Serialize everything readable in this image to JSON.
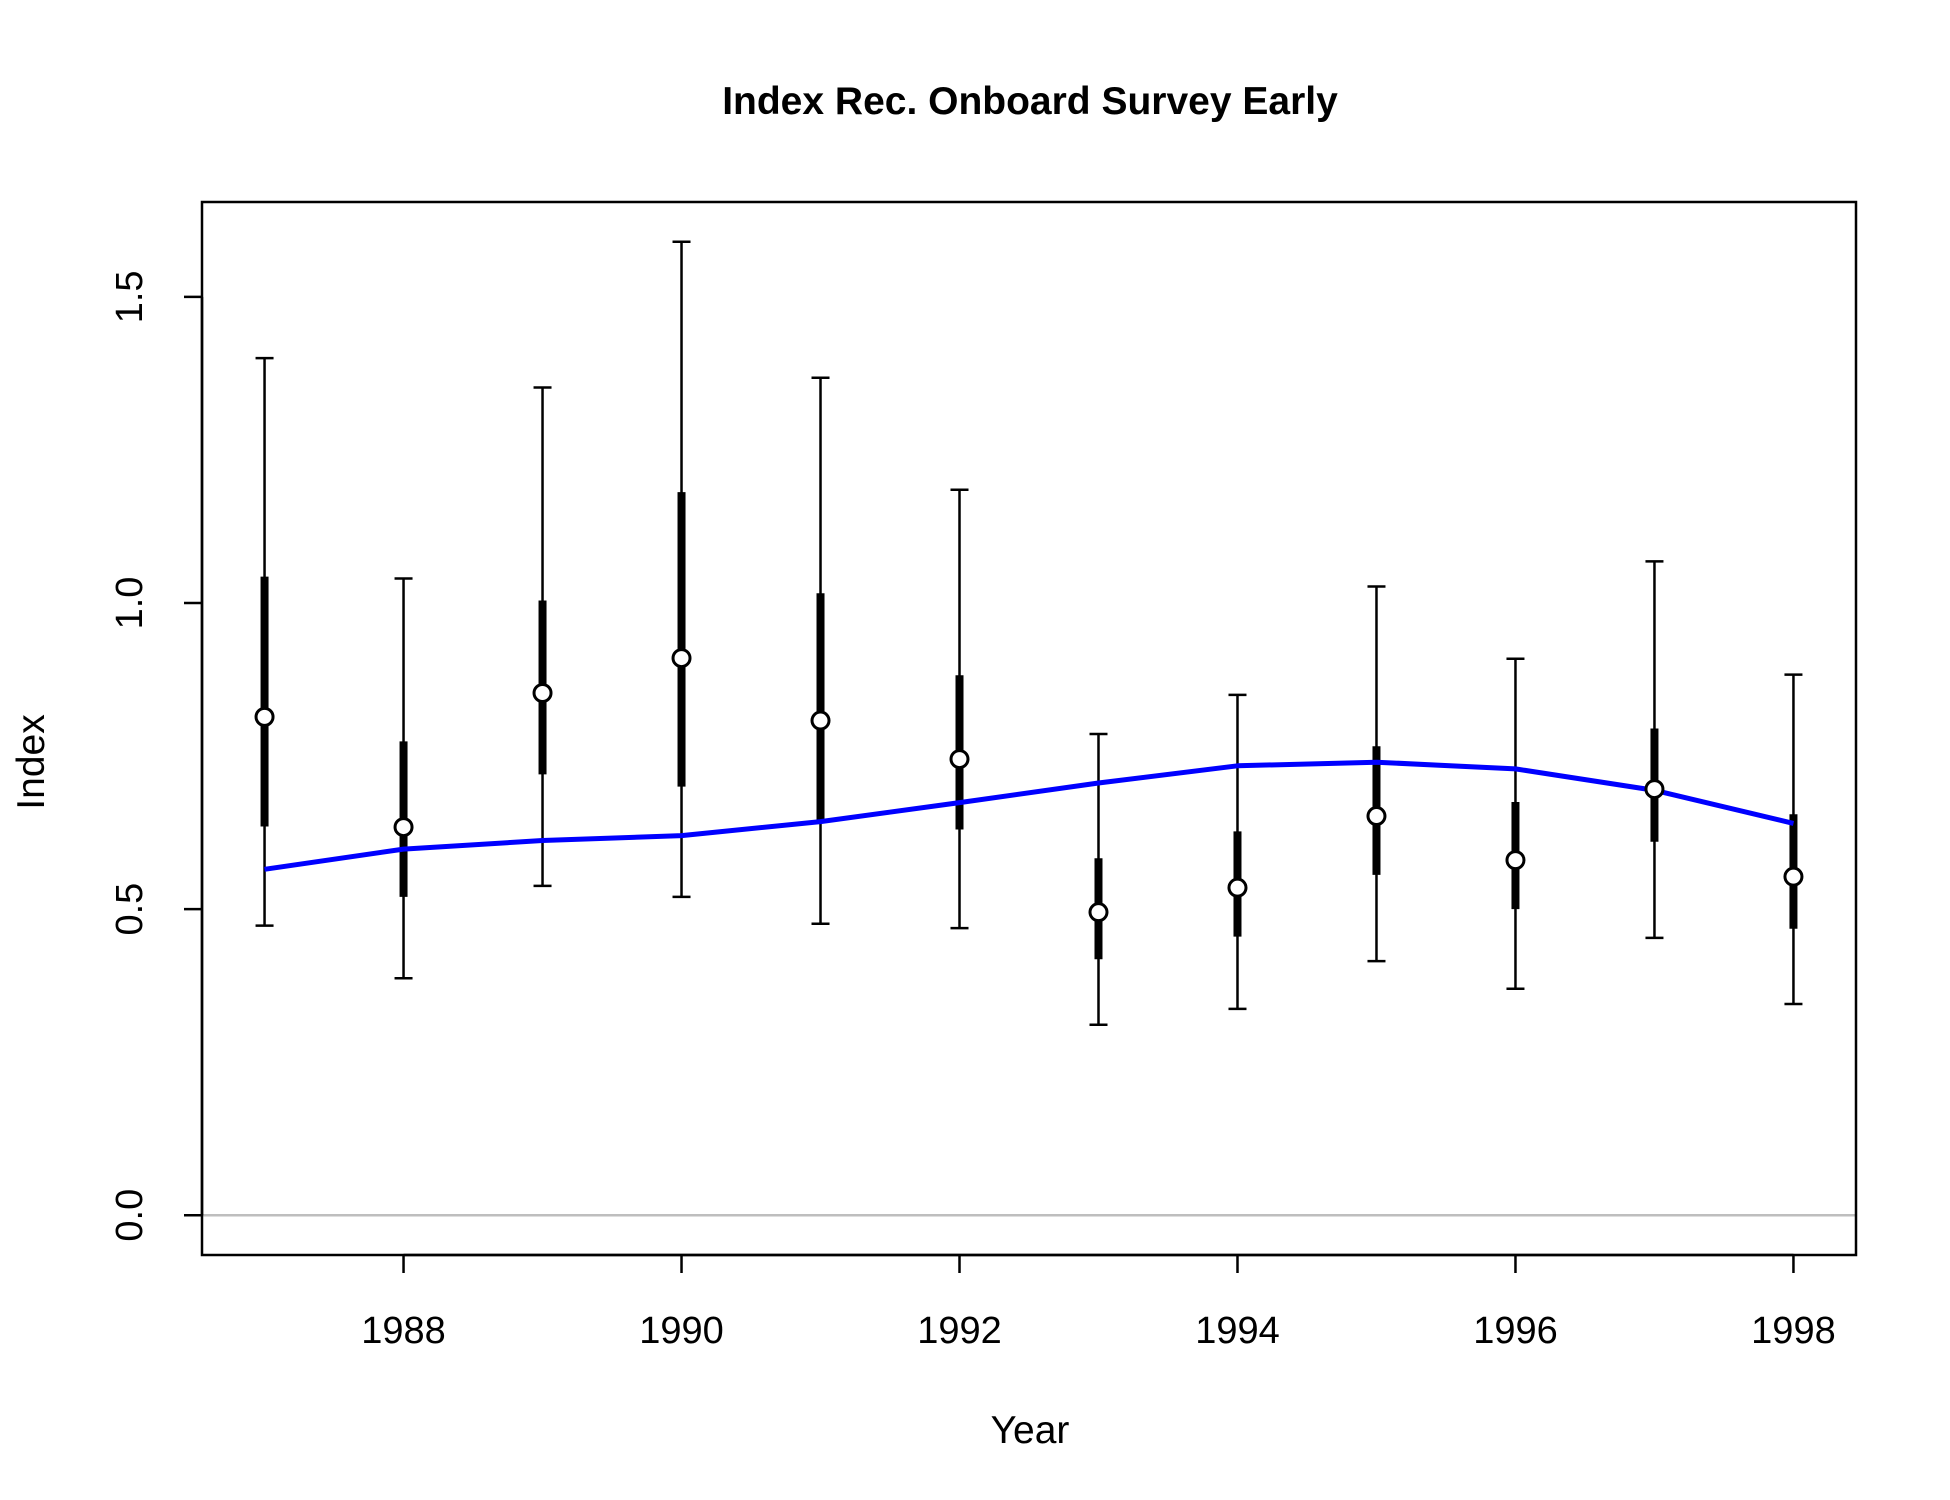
{
  "chart_data": {
    "type": "line",
    "title": "Index Rec. Onboard Survey Early",
    "xlabel": "Year",
    "ylabel": "Index",
    "xlim": [
      1986.55,
      1998.45
    ],
    "ylim": [
      -0.065,
      1.655
    ],
    "x_ticks": [
      1988,
      1990,
      1992,
      1994,
      1996,
      1998
    ],
    "y_ticks": [
      0.0,
      0.5,
      1.0,
      1.5
    ],
    "y_tick_labels": [
      "0.0",
      "0.5",
      "1.0",
      "1.5"
    ],
    "reference_line_y": 0,
    "colors": {
      "observed": "#000000",
      "expected": "#0000ff",
      "reference_line": "#bebebe"
    },
    "series": [
      {
        "x": [
          1987,
          1988,
          1989,
          1990,
          1991,
          1992,
          1993,
          1994,
          1995,
          1996,
          1997,
          1998
        ],
        "y": [
          0.814,
          0.634,
          0.853,
          0.91,
          0.808,
          0.745,
          0.495,
          0.535,
          0.652,
          0.58,
          0.696,
          0.553
        ],
        "inner_lower": [
          0.635,
          0.52,
          0.72,
          0.7,
          0.64,
          0.63,
          0.418,
          0.455,
          0.556,
          0.5,
          0.61,
          0.468
        ],
        "inner_upper": [
          1.043,
          0.774,
          1.004,
          1.181,
          1.016,
          0.882,
          0.583,
          0.627,
          0.766,
          0.675,
          0.795,
          0.655
        ],
        "outer_lower": [
          0.473,
          0.387,
          0.538,
          0.52,
          0.476,
          0.469,
          0.311,
          0.337,
          0.415,
          0.37,
          0.453,
          0.345
        ],
        "outer_upper": [
          1.4,
          1.04,
          1.352,
          1.59,
          1.368,
          1.185,
          0.786,
          0.85,
          1.027,
          0.909,
          1.068,
          0.883
        ]
      },
      {
        "x": [
          1987,
          1988,
          1989,
          1990,
          1991,
          1992,
          1993,
          1994,
          1995,
          1996,
          1997,
          1998
        ],
        "y": [
          0.565,
          0.598,
          0.612,
          0.62,
          0.643,
          0.674,
          0.706,
          0.734,
          0.74,
          0.729,
          0.694,
          0.64
        ]
      }
    ]
  }
}
